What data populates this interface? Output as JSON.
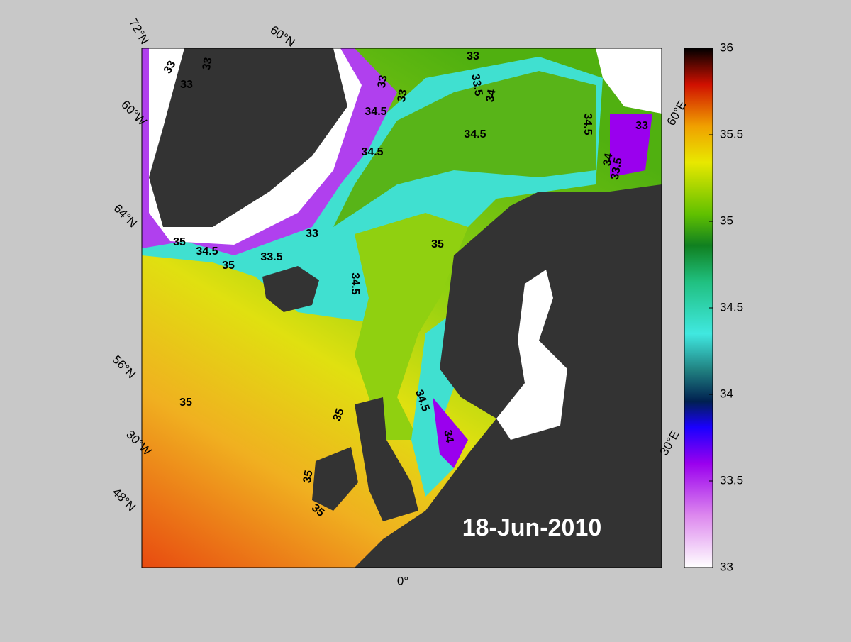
{
  "map": {
    "date": "18-Jun-2010",
    "graticule_labels": [
      "72°N",
      "60°N",
      "60°W",
      "64°N",
      "56°N",
      "30°W",
      "48°N",
      "0°",
      "60°E",
      "30°E"
    ],
    "contour_labels": [
      "33",
      "33",
      "33",
      "33",
      "33",
      "33",
      "33.5",
      "34",
      "34.5",
      "34.5",
      "34.5",
      "33",
      "34",
      "33.5",
      "34.5",
      "33",
      "34.5",
      "35",
      "33.5",
      "35",
      "34.5",
      "35",
      "35",
      "34.5",
      "34",
      "35",
      "35",
      "35"
    ]
  },
  "colorbar": {
    "lim": [
      33,
      36
    ],
    "ticks": [
      33,
      33.5,
      34,
      34.5,
      35,
      35.5,
      36
    ]
  }
}
